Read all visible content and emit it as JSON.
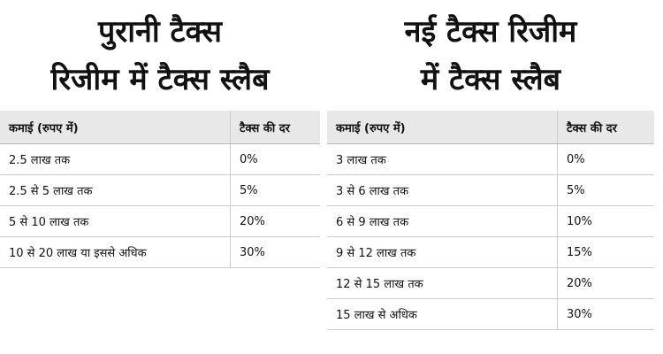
{
  "left": {
    "title_lines": [
      "पुरानी टैक्स",
      "रिजीम में टैक्स स्लैब"
    ],
    "table": {
      "header": [
        "कमाई (रुपए में)",
        "टैक्स की दर"
      ],
      "rows": [
        [
          "2.5 लाख तक",
          "0%"
        ],
        [
          "2.5 से 5 लाख तक",
          "5%"
        ],
        [
          "5 से 10 लाख तक",
          "20%"
        ],
        [
          "10 से 20 लाख या इससे अधिक",
          "30%"
        ]
      ]
    }
  },
  "right": {
    "title_lines": [
      "नई टैक्स रिजीम",
      "में टैक्स स्लैब"
    ],
    "table": {
      "header": [
        "कमाई (रुपए में)",
        "टैक्स की दर"
      ],
      "rows": [
        [
          "3 लाख तक",
          "0%"
        ],
        [
          "3 से 6 लाख तक",
          "5%"
        ],
        [
          "6 से 9 लाख तक",
          "10%"
        ],
        [
          "9 से 12 लाख तक",
          "15%"
        ],
        [
          "12 से 15 लाख तक",
          "20%"
        ],
        [
          "15 लाख से अधिक",
          "30%"
        ]
      ]
    }
  }
}
